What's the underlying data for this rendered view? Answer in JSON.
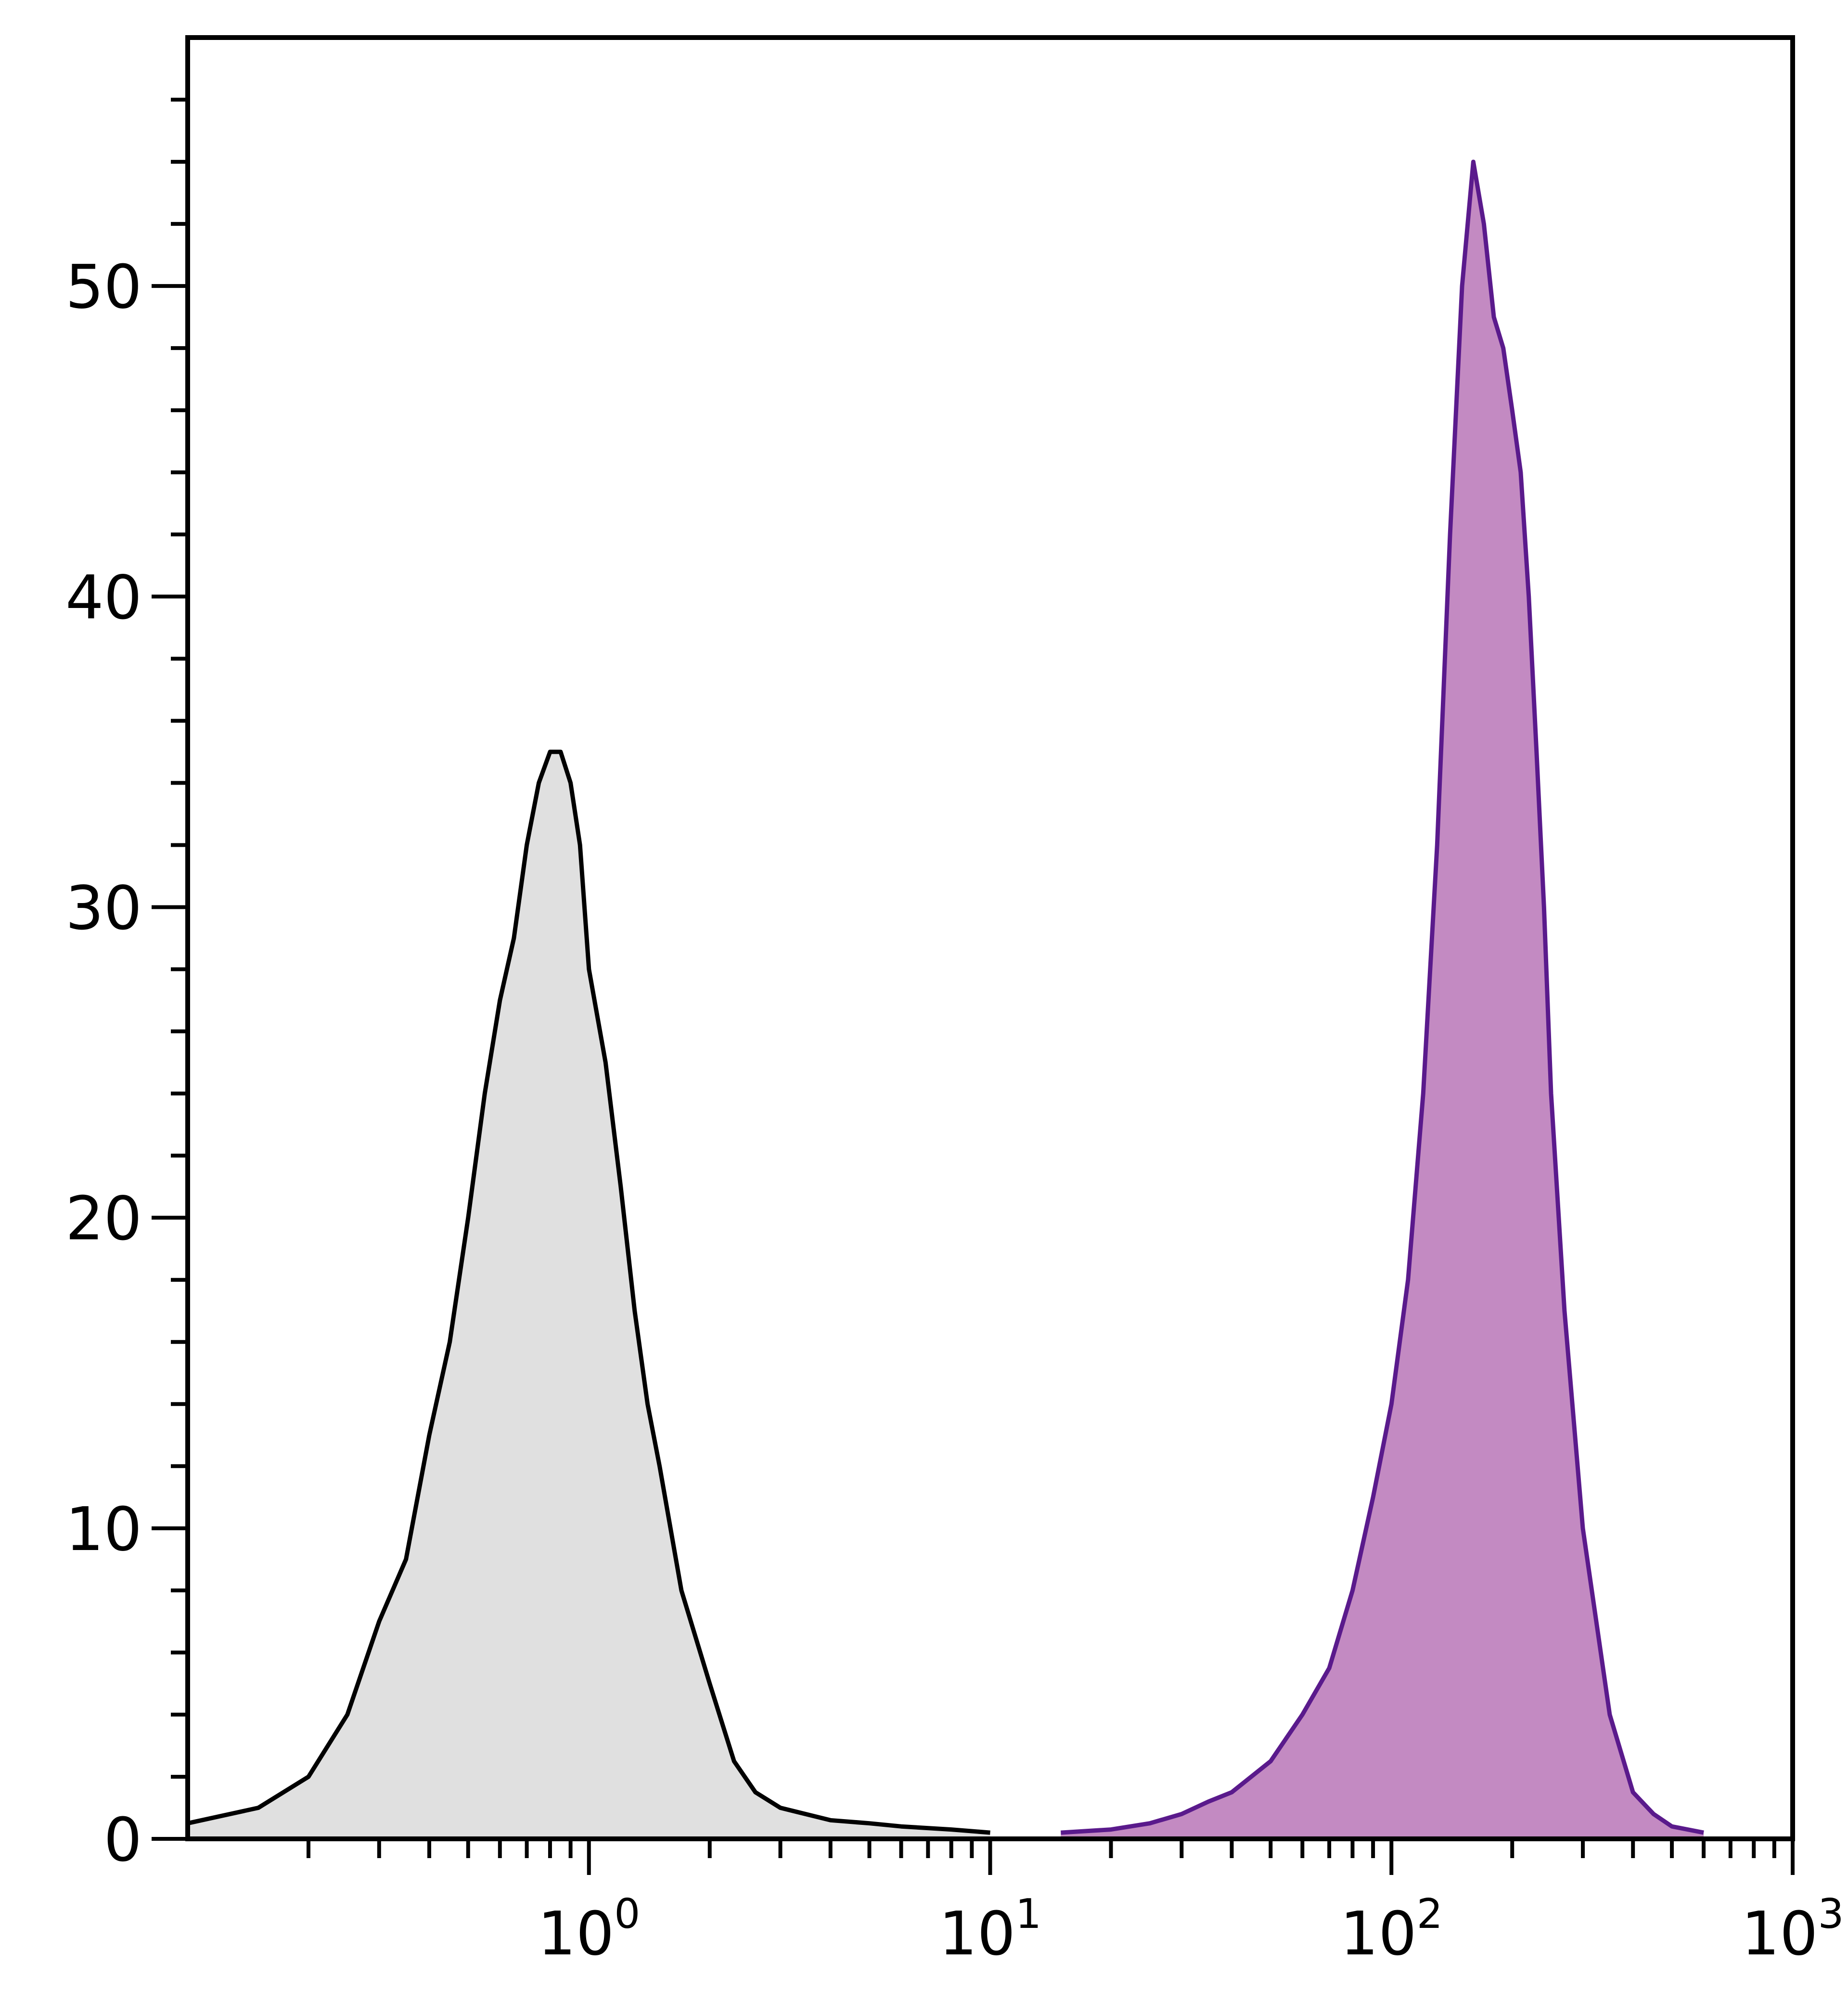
{
  "chart_data": {
    "type": "area",
    "title": "",
    "xlabel": "",
    "ylabel": "",
    "x_scale": "log",
    "xlim": [
      0.1,
      1000
    ],
    "ylim": [
      0,
      58
    ],
    "grid": false,
    "legend": "none",
    "x_ticks": [
      {
        "value": 1,
        "base": "10",
        "exp": "0"
      },
      {
        "value": 10,
        "base": "10",
        "exp": "1"
      },
      {
        "value": 100,
        "base": "10",
        "exp": "2"
      },
      {
        "value": 1000,
        "base": "10",
        "exp": "3"
      }
    ],
    "y_ticks": [
      {
        "value": 0,
        "label": "0"
      },
      {
        "value": 10,
        "label": "10"
      },
      {
        "value": 20,
        "label": "20"
      },
      {
        "value": 30,
        "label": "30"
      },
      {
        "value": 40,
        "label": "40"
      },
      {
        "value": 50,
        "label": "50"
      }
    ],
    "series": [
      {
        "line_color": "#000000",
        "fill_color": "#e0e0e0",
        "x": [
          0.1,
          0.15,
          0.2,
          0.25,
          0.3,
          0.35,
          0.4,
          0.45,
          0.5,
          0.55,
          0.6,
          0.65,
          0.7,
          0.75,
          0.8,
          0.85,
          0.9,
          0.95,
          1.0,
          1.1,
          1.2,
          1.3,
          1.4,
          1.5,
          1.7,
          2.0,
          2.3,
          2.6,
          3.0,
          4.0,
          5.0,
          6.0,
          8.0,
          10.0
        ],
        "y": [
          0.5,
          1.0,
          2.0,
          4.0,
          7.0,
          9.0,
          13.0,
          16.0,
          20.0,
          24.0,
          27.0,
          29.0,
          32.0,
          34.0,
          35.0,
          35.0,
          34.0,
          32.0,
          28.0,
          25.0,
          21.0,
          17.0,
          14.0,
          12.0,
          8.0,
          5.0,
          2.5,
          1.5,
          1.0,
          0.6,
          0.5,
          0.4,
          0.3,
          0.2
        ]
      },
      {
        "line_color": "#5a1a8c",
        "fill_color": "#c38ac2",
        "x": [
          15,
          20,
          25,
          30,
          35,
          40,
          50,
          60,
          70,
          80,
          90,
          100,
          110,
          120,
          130,
          140,
          150,
          160,
          170,
          180,
          190,
          200,
          210,
          220,
          230,
          240,
          250,
          270,
          300,
          350,
          400,
          450,
          500,
          600
        ],
        "y": [
          0.2,
          0.3,
          0.5,
          0.8,
          1.2,
          1.5,
          2.5,
          4.0,
          5.5,
          8.0,
          11.0,
          14.0,
          18.0,
          24.0,
          32.0,
          42.0,
          50.0,
          54.0,
          52.0,
          49.0,
          48.0,
          46.0,
          44.0,
          40.0,
          35.0,
          30.0,
          24.0,
          17.0,
          10.0,
          4.0,
          1.5,
          0.8,
          0.4,
          0.2
        ]
      }
    ]
  }
}
